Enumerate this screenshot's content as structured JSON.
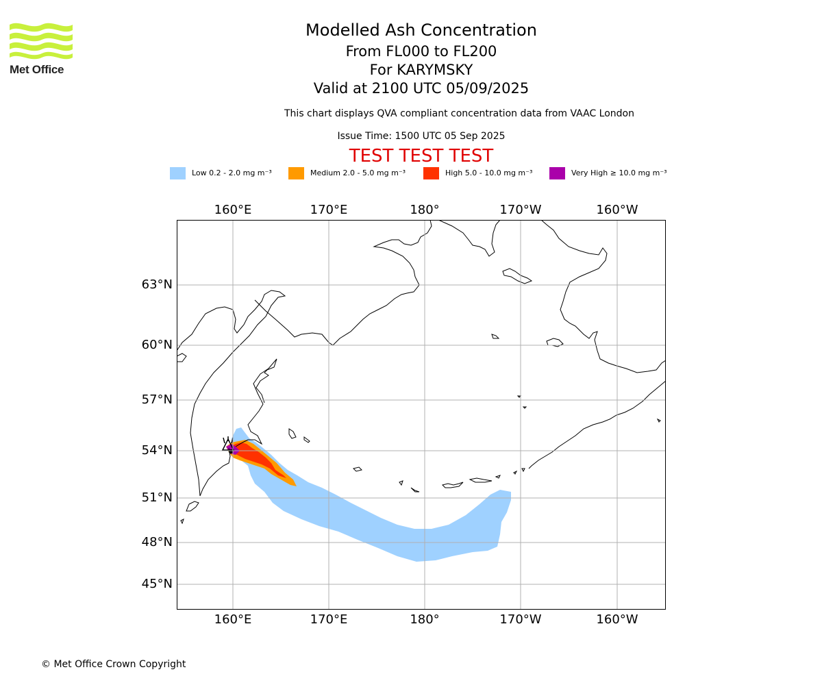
{
  "brand": {
    "name": "Met Office",
    "logo_color": "#c8f03c"
  },
  "header": {
    "title": "Modelled Ash Concentration",
    "levels": "From FL000 to FL200",
    "volcano": "For KARYMSKY",
    "valid": "Valid at 2100 UTC 05/09/2025",
    "subtitle": "This chart displays QVA compliant concentration data from VAAC London",
    "issue_time": "Issue Time: 1500 UTC 05 Sep 2025",
    "test_banner": "TEST TEST TEST",
    "test_color": "#e00000"
  },
  "legend": [
    {
      "label": "Low 0.2 - 2.0 mg m⁻³",
      "color": "#9fd1ff"
    },
    {
      "label": "Medium 2.0 - 5.0 mg m⁻³",
      "color": "#ff9a00"
    },
    {
      "label": "High 5.0 - 10.0 mg m⁻³",
      "color": "#ff3200"
    },
    {
      "label": "Very High ≥ 10.0 mg m⁻³",
      "color": "#aa00aa"
    }
  ],
  "map": {
    "lon_labels": [
      "160°E",
      "170°E",
      "180°",
      "170°W",
      "160°W"
    ],
    "lat_labels": [
      "63°N",
      "60°N",
      "57°N",
      "54°N",
      "51°N",
      "48°N",
      "45°N"
    ],
    "gridlines": true
  },
  "footer": {
    "copyright": "© Met Office Crown Copyright"
  }
}
